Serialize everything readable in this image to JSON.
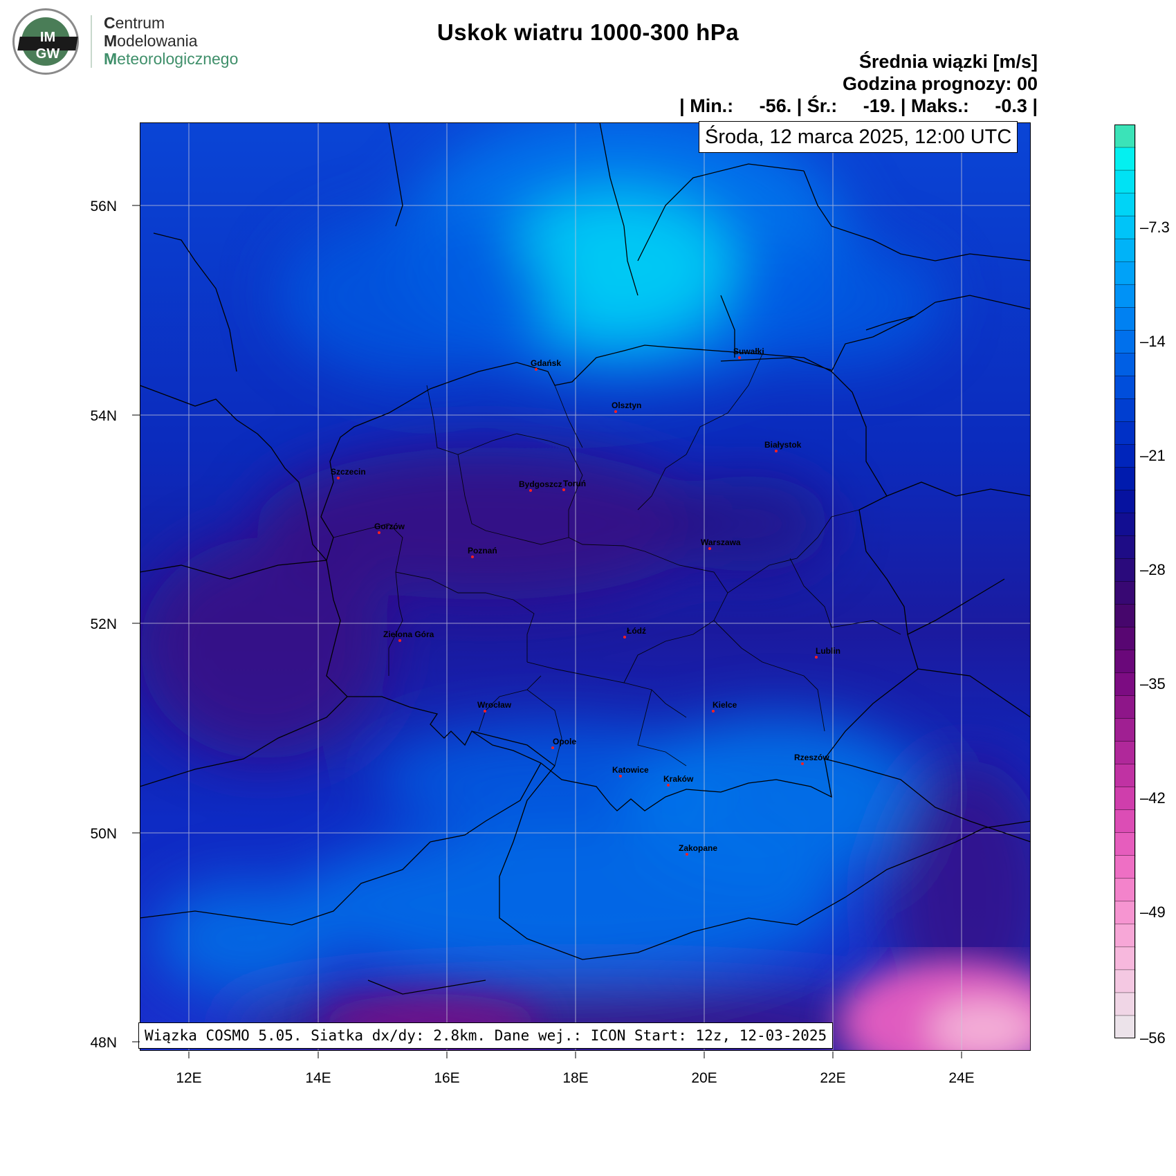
{
  "logo": {
    "circle_letters_top": "IM",
    "circle_letters_bottom": "GW",
    "line1_initial": "C",
    "line1_rest": "entrum",
    "line2_initial": "M",
    "line2_rest": "odelowania",
    "line3_initial": "M",
    "line3_rest": "eteorologicznego"
  },
  "title": "Uskok wiatru 1000-300 hPa",
  "subtitle_units": "Średnia wiązki [m/s]",
  "forecast_hour": "Godzina prognozy: 00",
  "stats_line": "| Min.:     -56. | Śr.:     -19. | Maks.:     -0.3 |",
  "datetime": "Środa, 12 marca 2025, 12:00 UTC",
  "footer": "Wiązka COSMO 5.05. Siatka dx/dy: 2.8km. Dane wej.: ICON Start: 12z, 12-03-2025",
  "axes": {
    "lon_labels": [
      "12E",
      "14E",
      "16E",
      "18E",
      "20E",
      "22E",
      "24E"
    ],
    "lat_labels": [
      "56N",
      "54N",
      "52N",
      "50N",
      "48N"
    ]
  },
  "colorbar": {
    "labels": [
      "-7.3",
      "-14",
      "-21",
      "-28",
      "-35",
      "-42",
      "-49",
      "-56"
    ],
    "colors": [
      "#3be3b8",
      "#04f0f0",
      "#00e2f4",
      "#00d4f6",
      "#00c4f8",
      "#00b3f8",
      "#00a2f8",
      "#0092f6",
      "#0081f2",
      "#0070ec",
      "#005fe4",
      "#004edb",
      "#003ed0",
      "#0030c6",
      "#0025bb",
      "#001bae",
      "#0612a0",
      "#120e92",
      "#1e0c86",
      "#2a0a7c",
      "#380873",
      "#46066c",
      "#580672",
      "#6a087a",
      "#7c0c82",
      "#8e1689",
      "#a01f92",
      "#b0289a",
      "#c032a3",
      "#cf3eac",
      "#dc4db5",
      "#e65dbd",
      "#ee6fc4",
      "#f383cb",
      "#f695d1",
      "#f7a7d7",
      "#f7b8dd",
      "#f4c8e2",
      "#f0d6e6",
      "#ece3ea"
    ],
    "ticks_every_index": 5
  },
  "cities": [
    {
      "name": "Gdańsk"
    },
    {
      "name": "Suwałki"
    },
    {
      "name": "Olsztyn"
    },
    {
      "name": "Białystok"
    },
    {
      "name": "Szczecin"
    },
    {
      "name": "Bydgoszcz"
    },
    {
      "name": "Toruń"
    },
    {
      "name": "Gorzów"
    },
    {
      "name": "Poznań"
    },
    {
      "name": "Warszawa"
    },
    {
      "name": "Zielona Góra"
    },
    {
      "name": "Łódź"
    },
    {
      "name": "Lublin"
    },
    {
      "name": "Wrocław"
    },
    {
      "name": "Kielce"
    },
    {
      "name": "Opole"
    },
    {
      "name": "Rzeszów"
    },
    {
      "name": "Katowice"
    },
    {
      "name": "Kraków"
    },
    {
      "name": "Zakopane"
    }
  ]
}
